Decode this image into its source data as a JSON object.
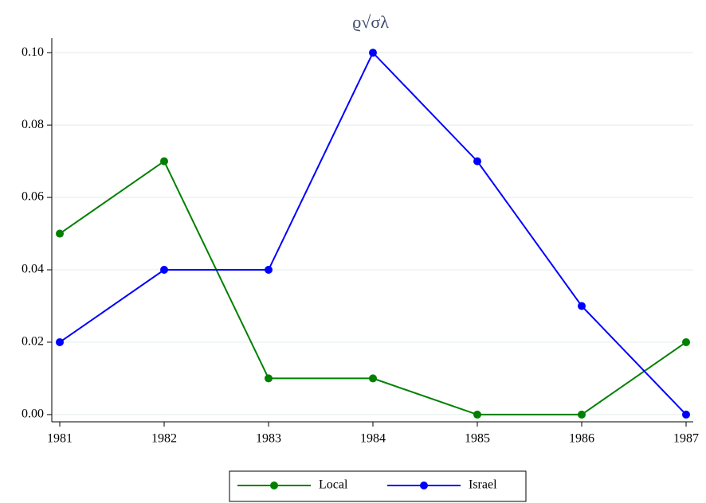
{
  "chart_data": {
    "type": "line",
    "title": "ϱ√σλ",
    "x": [
      1981,
      1982,
      1983,
      1984,
      1985,
      1986,
      1987
    ],
    "series": [
      {
        "name": "Local",
        "color": "#008000",
        "values": [
          0.05,
          0.07,
          0.01,
          0.01,
          0,
          0,
          0.02
        ]
      },
      {
        "name": "Israel",
        "color": "#0000ff",
        "values": [
          0.02,
          0.04,
          0.04,
          0.1,
          0.07,
          0.03,
          0.0
        ]
      }
    ],
    "xlim": [
      1981,
      1987
    ],
    "xticks": [
      1981,
      1982,
      1983,
      1984,
      1985,
      1986,
      1987
    ],
    "ylim": [
      -0.002,
      0.104
    ],
    "yticks": [
      {
        "value": 0,
        "label": "0.00"
      },
      {
        "value": 0.02,
        "label": "0.02"
      },
      {
        "value": 0.04,
        "label": "0.04"
      },
      {
        "value": 0.06,
        "label": "0.06"
      },
      {
        "value": 0.08,
        "label": "0.08"
      },
      {
        "value": 0.1,
        "label": "0.10"
      }
    ],
    "grid": true,
    "legend": "bottom"
  }
}
